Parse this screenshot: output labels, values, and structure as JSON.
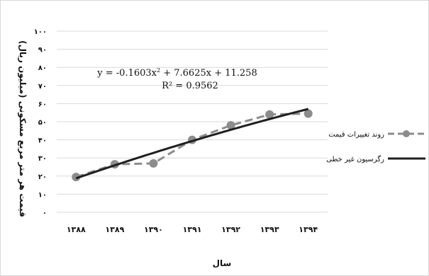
{
  "chart_data": {
    "type": "line",
    "categories": [
      "۱۳۸۸",
      "۱۳۸۹",
      "۱۳۹۰",
      "۱۳۹۱",
      "۱۳۹۲",
      "۱۳۹۳",
      "۱۳۹۴"
    ],
    "y_ticks": [
      {
        "value": 0,
        "label": "۰"
      },
      {
        "value": 10,
        "label": "۱۰"
      },
      {
        "value": 20,
        "label": "۲۰"
      },
      {
        "value": 30,
        "label": "۳۰"
      },
      {
        "value": 40,
        "label": "۴۰"
      },
      {
        "value": 50,
        "label": "۵۰"
      },
      {
        "value": 60,
        "label": "۶۰"
      },
      {
        "value": 70,
        "label": "۷۰"
      },
      {
        "value": 80,
        "label": "۸۰"
      },
      {
        "value": 90,
        "label": "۹۰"
      },
      {
        "value": 100,
        "label": "۱۰۰"
      }
    ],
    "ylim": [
      0,
      100
    ],
    "xlabel": "سال",
    "ylabel": "قیمت هر متر مربع مسکونی (میلیون ریال)",
    "grid": true,
    "legend_position": "right",
    "series": [
      {
        "name": "روند تغییرات قیمت",
        "style": "dashed-markers",
        "color": "#8c8c8c",
        "values": [
          19.5,
          26.5,
          27,
          40,
          48,
          54,
          54.5
        ]
      },
      {
        "name": "رگرسیون غیر خطی",
        "style": "solid",
        "color": "#1f1f1f",
        "regression": {
          "a": -0.1603,
          "b": 7.6625,
          "c": 11.258
        }
      }
    ],
    "annotation": {
      "equation_main": "y = -0.1603x",
      "equation_sup": "2",
      "equation_rest": " + 7.6625x + 11.258",
      "r2": "R² = 0.9562"
    }
  }
}
